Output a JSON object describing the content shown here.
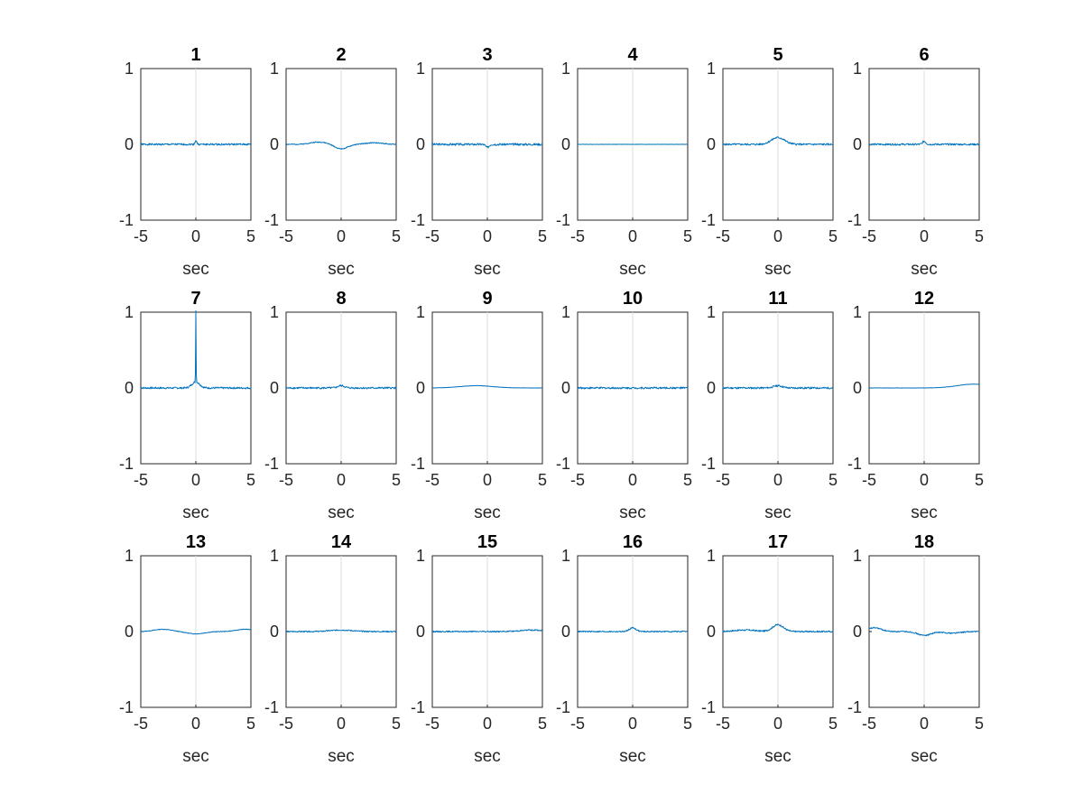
{
  "chart_data": {
    "type": "line",
    "grid": "6x3 subplots",
    "line_color": "#0072BD",
    "zero_line_color": "#dcdcdc",
    "xlim": [
      -5,
      5
    ],
    "ylim": [
      -1,
      1
    ],
    "x_ticks": [
      "-5",
      "0",
      "5"
    ],
    "y_ticks": [
      "1",
      "0",
      "-1"
    ],
    "xlabel": "sec",
    "panels": [
      {
        "title": "1",
        "features": [
          {
            "x": 0,
            "a": 0.05,
            "w": 0.08
          }
        ],
        "offset": 0.0,
        "noise": 0.012
      },
      {
        "title": "2",
        "features": [
          {
            "x": -2.0,
            "a": 0.03,
            "w": 0.8
          },
          {
            "x": 0.0,
            "a": -0.06,
            "w": 0.6
          },
          {
            "x": 3.0,
            "a": 0.02,
            "w": 0.8
          }
        ],
        "offset": 0.0,
        "noise": 0.006
      },
      {
        "title": "3",
        "features": [
          {
            "x": 0,
            "a": -0.04,
            "w": 0.15
          }
        ],
        "offset": 0.0,
        "noise": 0.014
      },
      {
        "title": "4",
        "features": [],
        "offset": 0.0,
        "noise": 0.002
      },
      {
        "title": "5",
        "features": [
          {
            "x": 0,
            "a": 0.09,
            "w": 0.6
          }
        ],
        "offset": 0.0,
        "noise": 0.012
      },
      {
        "title": "6",
        "features": [
          {
            "x": 0,
            "a": 0.04,
            "w": 0.15
          }
        ],
        "offset": 0.0,
        "noise": 0.012
      },
      {
        "title": "7",
        "features": [
          {
            "x": 0,
            "a": 0.95,
            "w": 0.02
          },
          {
            "x": 0,
            "a": 0.08,
            "w": 0.35
          }
        ],
        "offset": 0.0,
        "noise": 0.012
      },
      {
        "title": "8",
        "features": [
          {
            "x": 0,
            "a": 0.03,
            "w": 0.3
          }
        ],
        "offset": 0.0,
        "noise": 0.012
      },
      {
        "title": "9",
        "features": [
          {
            "x": -1.0,
            "a": 0.03,
            "w": 1.5
          }
        ],
        "offset": 0.0,
        "noise": 0.002
      },
      {
        "title": "10",
        "features": [],
        "offset": 0.0,
        "noise": 0.012
      },
      {
        "title": "11",
        "features": [
          {
            "x": 0,
            "a": 0.03,
            "w": 0.4
          }
        ],
        "offset": 0.0,
        "noise": 0.012
      },
      {
        "title": "12",
        "features": [
          {
            "x": 4.5,
            "a": 0.05,
            "w": 1.5
          }
        ],
        "offset": 0.0,
        "noise": 0.002
      },
      {
        "title": "13",
        "features": [
          {
            "x": -3.0,
            "a": 0.03,
            "w": 0.8
          },
          {
            "x": 0.0,
            "a": -0.03,
            "w": 0.8
          },
          {
            "x": 4.5,
            "a": 0.03,
            "w": 0.8
          }
        ],
        "offset": 0.0,
        "noise": 0.004
      },
      {
        "title": "14",
        "features": [
          {
            "x": 0,
            "a": 0.02,
            "w": 1.0
          }
        ],
        "offset": 0.0,
        "noise": 0.008
      },
      {
        "title": "15",
        "features": [
          {
            "x": 4.0,
            "a": 0.02,
            "w": 1.0
          }
        ],
        "offset": 0.0,
        "noise": 0.008
      },
      {
        "title": "16",
        "features": [
          {
            "x": 0,
            "a": 0.05,
            "w": 0.3
          }
        ],
        "offset": 0.0,
        "noise": 0.008
      },
      {
        "title": "17",
        "features": [
          {
            "x": 0,
            "a": 0.09,
            "w": 0.5
          },
          {
            "x": -3.0,
            "a": 0.02,
            "w": 1.0
          }
        ],
        "offset": 0.0,
        "noise": 0.01
      },
      {
        "title": "18",
        "features": [
          {
            "x": -4.5,
            "a": 0.05,
            "w": 0.6
          },
          {
            "x": 0.0,
            "a": -0.05,
            "w": 0.6
          },
          {
            "x": 2.5,
            "a": -0.02,
            "w": 0.8
          }
        ],
        "offset": 0.0,
        "noise": 0.008
      }
    ]
  }
}
